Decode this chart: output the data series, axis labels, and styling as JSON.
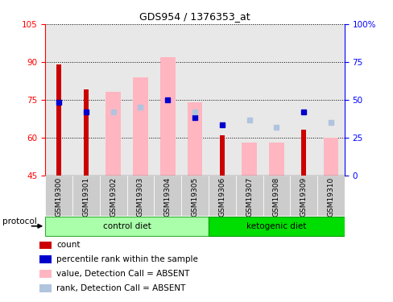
{
  "title": "GDS954 / 1376353_at",
  "samples": [
    "GSM19300",
    "GSM19301",
    "GSM19302",
    "GSM19303",
    "GSM19304",
    "GSM19305",
    "GSM19306",
    "GSM19307",
    "GSM19308",
    "GSM19309",
    "GSM19310"
  ],
  "ctrl_indices": [
    0,
    1,
    2,
    3,
    4,
    5
  ],
  "keto_indices": [
    6,
    7,
    8,
    9,
    10
  ],
  "ylim_left": [
    45,
    105
  ],
  "ylim_right": [
    0,
    100
  ],
  "yticks_left": [
    45,
    60,
    75,
    90,
    105
  ],
  "yticks_right": [
    0,
    25,
    50,
    75,
    100
  ],
  "ytick_labels_right": [
    "0",
    "25",
    "50",
    "75",
    "100%"
  ],
  "red_bars": [
    89,
    79,
    0,
    0,
    0,
    0,
    61,
    0,
    0,
    63,
    0
  ],
  "pink_bars": [
    0,
    0,
    78,
    84,
    92,
    74,
    0,
    58,
    58,
    0,
    60
  ],
  "blue_squares": [
    74,
    70,
    0,
    0,
    75,
    68,
    65,
    0,
    0,
    70,
    0
  ],
  "light_blue_squares": [
    0,
    0,
    70,
    72,
    0,
    70,
    0,
    67,
    64,
    0,
    66
  ],
  "color_red": "#CC0000",
  "color_pink": "#FFB6C1",
  "color_blue": "#0000CC",
  "color_light_blue": "#B0C4DE",
  "color_ctrl": "#AAFFAA",
  "color_keto": "#00DD00",
  "group_label_control": "control diet",
  "group_label_ketogenic": "ketogenic diet",
  "protocol_label": "protocol"
}
